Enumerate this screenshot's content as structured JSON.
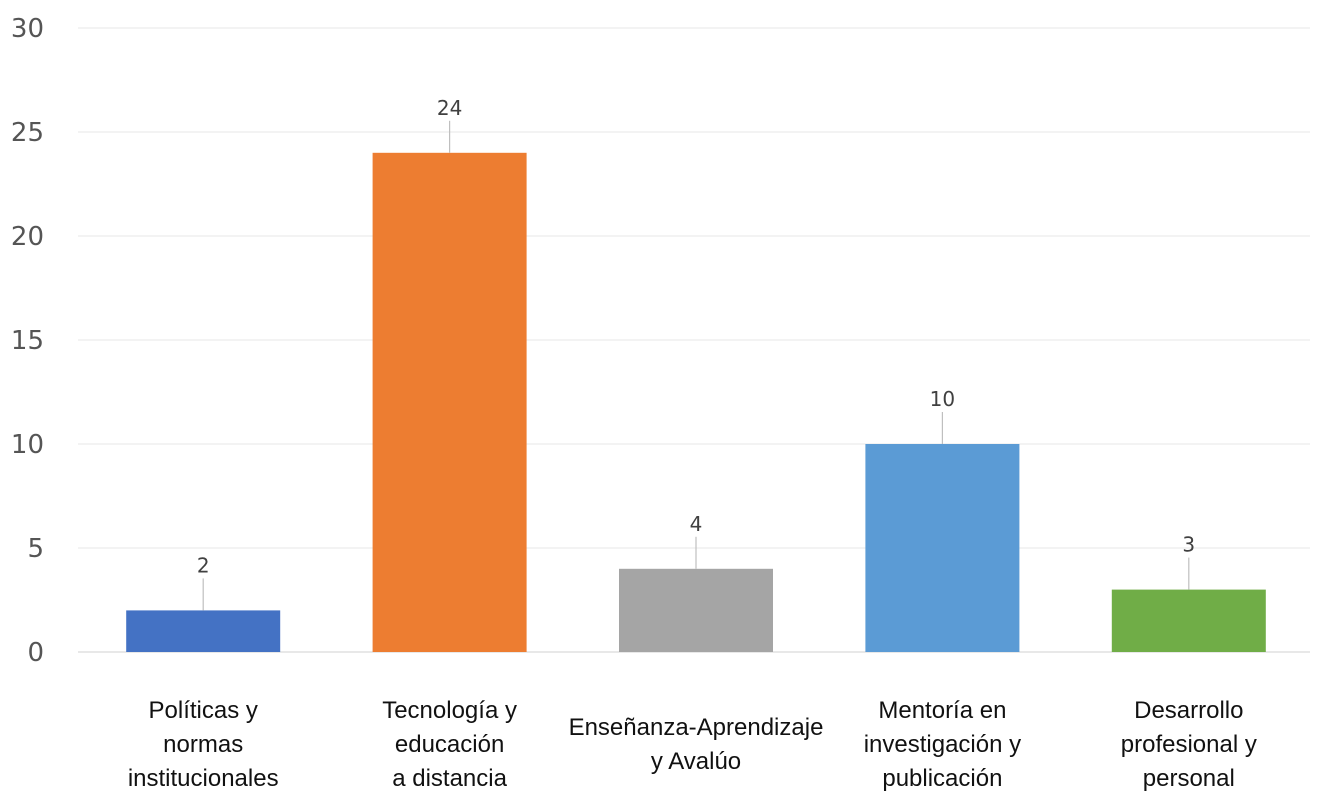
{
  "chart_data": {
    "type": "bar",
    "title": "",
    "xlabel": "",
    "ylabel": "",
    "ylim": [
      0,
      30
    ],
    "yticks": [
      0,
      5,
      10,
      15,
      20,
      25,
      30
    ],
    "grid": true,
    "legend": "none",
    "categories": [
      [
        "Políticas y",
        "normas",
        "institucionales"
      ],
      [
        "Tecnología y",
        "educación",
        "a distancia"
      ],
      [
        "Enseñanza-Aprendizaje",
        "y Avalúo"
      ],
      [
        "Mentoría en",
        "investigación y",
        "publicación"
      ],
      [
        "Desarrollo",
        "profesional y",
        "personal"
      ]
    ],
    "values": [
      2,
      24,
      4,
      10,
      3
    ],
    "data_labels": [
      "2",
      "24",
      "4",
      "10",
      "3"
    ],
    "colors": [
      "#4472C4",
      "#ED7D31",
      "#A5A5A5",
      "#5B9BD5",
      "#70AD47"
    ]
  }
}
